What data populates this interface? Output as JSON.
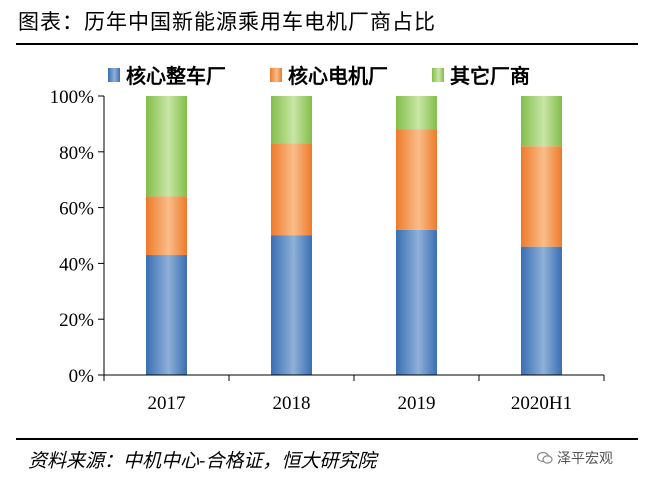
{
  "title": "图表：历年中国新能源乘用车电机厂商占比",
  "source": "资料来源：中机中心-合格证，恒大研究院",
  "brand": "泽平宏观",
  "chart_data": {
    "type": "bar",
    "stacked": true,
    "categories": [
      "2017",
      "2018",
      "2019",
      "2020H1"
    ],
    "series": [
      {
        "name": "核心整车厂",
        "values": [
          43,
          50,
          52,
          46
        ],
        "color": "#4a7ebb"
      },
      {
        "name": "核心电机厂",
        "values": [
          21,
          33,
          36,
          36
        ],
        "color": "#f08a3c"
      },
      {
        "name": "其它厂商",
        "values": [
          36,
          17,
          12,
          18
        ],
        "color": "#92c95a"
      }
    ],
    "ylim": [
      0,
      100
    ],
    "yticks": [
      "0%",
      "20%",
      "40%",
      "60%",
      "80%",
      "100%"
    ],
    "legend_position": "top",
    "grid": false
  }
}
